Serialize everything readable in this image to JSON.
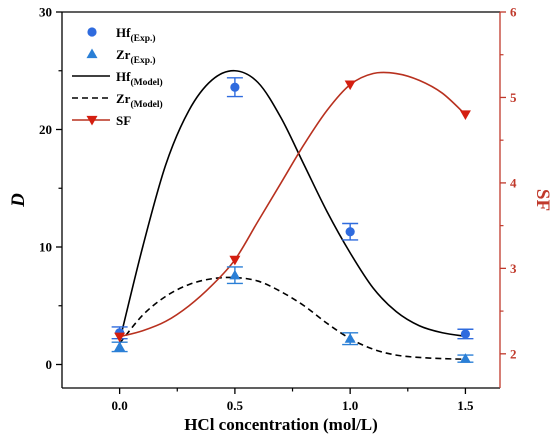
{
  "chart_data": {
    "type": "scatter",
    "xlabel": "HCl concentration (mol/L)",
    "ylabel_left": "D",
    "ylabel_right": "SF",
    "xlim": [
      -0.25,
      1.65
    ],
    "ylim_left": [
      -2,
      30
    ],
    "ylim_right": [
      1.6,
      6
    ],
    "x_ticks": [
      "0.0",
      "0.5",
      "1.0",
      "1.5"
    ],
    "y_left_ticks": [
      "0",
      "10",
      "20",
      "30"
    ],
    "y_right_ticks": [
      "2",
      "3",
      "4",
      "5",
      "6"
    ],
    "legend_position": "top-left",
    "colors": {
      "hf": "#2f6bde",
      "zr": "#2a7fd6",
      "model": "#000000",
      "sf": "#b8311f",
      "sf_marker": "#d41e10",
      "right_axis": "#c0392b"
    },
    "series": [
      {
        "name": "Hf",
        "name_sub": "(Exp.)",
        "kind": "points",
        "marker": "circle",
        "axis": "left",
        "x": [
          0.0,
          0.5,
          1.0,
          1.5
        ],
        "y": [
          2.7,
          23.6,
          11.3,
          2.6
        ],
        "err": [
          0.5,
          0.8,
          0.7,
          0.4
        ]
      },
      {
        "name": "Zr",
        "name_sub": "(Exp.)",
        "kind": "points",
        "marker": "triangle-up",
        "axis": "left",
        "x": [
          0.0,
          0.5,
          1.0,
          1.5
        ],
        "y": [
          1.5,
          7.6,
          2.2,
          0.5
        ],
        "err": [
          0.4,
          0.7,
          0.5,
          0.3
        ]
      },
      {
        "name": "Hf",
        "name_sub": "(Model)",
        "kind": "line",
        "style": "solid",
        "axis": "left",
        "x": [
          0.0,
          0.1,
          0.2,
          0.3,
          0.4,
          0.5,
          0.6,
          0.7,
          0.8,
          0.9,
          1.0,
          1.1,
          1.2,
          1.3,
          1.4,
          1.5
        ],
        "y": [
          2.0,
          10.0,
          17.0,
          21.6,
          24.2,
          25.0,
          24.0,
          21.0,
          17.0,
          13.0,
          9.5,
          6.5,
          4.5,
          3.3,
          2.7,
          2.4
        ]
      },
      {
        "name": "Zr",
        "name_sub": "(Model)",
        "kind": "line",
        "style": "dashed",
        "axis": "left",
        "x": [
          0.0,
          0.1,
          0.2,
          0.3,
          0.4,
          0.5,
          0.6,
          0.7,
          0.8,
          0.9,
          1.0,
          1.1,
          1.2,
          1.3,
          1.4,
          1.5
        ],
        "y": [
          1.8,
          4.2,
          5.8,
          6.8,
          7.3,
          7.4,
          7.1,
          6.2,
          5.0,
          3.5,
          2.2,
          1.3,
          0.8,
          0.6,
          0.5,
          0.45
        ]
      },
      {
        "name": "SF",
        "kind": "line-markers",
        "marker": "triangle-down",
        "axis": "right",
        "x": [
          0.0,
          0.5,
          1.0,
          1.5
        ],
        "y": [
          2.2,
          3.1,
          5.15,
          4.8
        ],
        "curve_x": [
          0.0,
          0.1,
          0.2,
          0.3,
          0.4,
          0.5,
          0.6,
          0.7,
          0.8,
          0.9,
          1.0,
          1.1,
          1.2,
          1.3,
          1.4,
          1.5
        ],
        "curve_y": [
          2.2,
          2.27,
          2.38,
          2.56,
          2.8,
          3.1,
          3.55,
          4.0,
          4.45,
          4.85,
          5.15,
          5.28,
          5.28,
          5.2,
          5.05,
          4.8
        ]
      }
    ]
  }
}
